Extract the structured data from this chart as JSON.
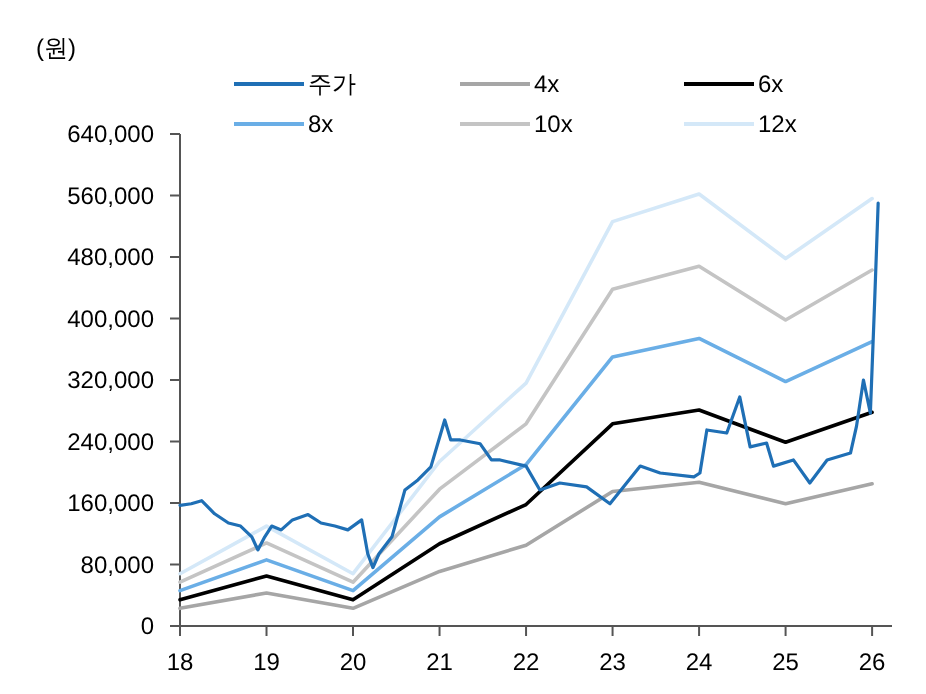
{
  "chart_data": {
    "type": "line",
    "ylabel": "(원)",
    "legend": "top",
    "xlim": [
      18,
      26.23
    ],
    "xticks": [
      18,
      19,
      20,
      21,
      22,
      23,
      24,
      25,
      26
    ],
    "ylim": [
      0,
      640000
    ],
    "yticks": [
      {
        "value": 0,
        "label": "0"
      },
      {
        "value": 80000,
        "label": "80,000"
      },
      {
        "value": 160000,
        "label": "160,000"
      },
      {
        "value": 240000,
        "label": "240,000"
      },
      {
        "value": 320000,
        "label": "320,000"
      },
      {
        "value": 400000,
        "label": "400,000"
      },
      {
        "value": 480000,
        "label": "480,000"
      },
      {
        "value": 560000,
        "label": "560,000"
      },
      {
        "value": 640000,
        "label": "640,000"
      }
    ],
    "series": [
      {
        "name": "주가",
        "color": "#1f6fb5",
        "x": [
          18.0,
          18.13,
          18.25,
          18.4,
          18.56,
          18.7,
          18.83,
          18.9,
          18.98,
          19.06,
          19.17,
          19.3,
          19.48,
          19.63,
          19.79,
          19.94,
          20.1,
          20.17,
          20.23,
          20.3,
          20.45,
          20.6,
          20.75,
          20.9,
          21.06,
          21.13,
          21.24,
          21.47,
          21.6,
          21.7,
          22.0,
          22.16,
          22.39,
          22.7,
          22.97,
          23.32,
          23.55,
          23.94,
          24.01,
          24.09,
          24.32,
          24.47,
          24.59,
          24.78,
          24.86,
          25.09,
          25.28,
          25.48,
          25.75,
          25.82,
          25.9,
          25.98,
          26.03,
          26.07
        ],
        "values": [
          157000,
          159000,
          163000,
          146000,
          134000,
          130000,
          116000,
          99000,
          116000,
          130000,
          125000,
          138000,
          145000,
          134000,
          130000,
          125000,
          138000,
          94000,
          76000,
          94000,
          116000,
          177000,
          190000,
          207000,
          268000,
          242000,
          242000,
          237000,
          216000,
          216000,
          208000,
          177000,
          186000,
          181000,
          159000,
          208000,
          199000,
          194000,
          199000,
          255000,
          251000,
          298000,
          233000,
          238000,
          208000,
          216000,
          186000,
          216000,
          225000,
          260000,
          320000,
          277000,
          424000,
          550000
        ]
      },
      {
        "name": "4x",
        "color": "#a6a6a6",
        "x": [
          18,
          19,
          20,
          21,
          22,
          23,
          24,
          25,
          26
        ],
        "values": [
          23000,
          43000,
          23000,
          71000,
          105000,
          175000,
          187000,
          159000,
          185000
        ]
      },
      {
        "name": "6x",
        "color": "#000000",
        "x": [
          18,
          19,
          20,
          21,
          22,
          23,
          24,
          25,
          26
        ],
        "values": [
          34000,
          65000,
          34000,
          107000,
          158000,
          263000,
          281000,
          239000,
          278000
        ]
      },
      {
        "name": "8x",
        "color": "#6aaee6",
        "x": [
          18,
          19,
          20,
          21,
          22,
          23,
          24,
          25,
          26
        ],
        "values": [
          46000,
          86000,
          46000,
          142000,
          210000,
          350000,
          374000,
          318000,
          370000
        ]
      },
      {
        "name": "10x",
        "color": "#c4c4c4",
        "x": [
          18,
          19,
          20,
          21,
          22,
          23,
          24,
          25,
          26
        ],
        "values": [
          57000,
          108000,
          57000,
          178000,
          263000,
          438000,
          468000,
          398000,
          463000
        ]
      },
      {
        "name": "12x",
        "color": "#d4e8f8",
        "x": [
          18,
          19,
          20,
          21,
          22,
          23,
          24,
          25,
          26
        ],
        "values": [
          68000,
          130000,
          68000,
          214000,
          316000,
          526000,
          562000,
          478000,
          556000
        ]
      }
    ]
  }
}
